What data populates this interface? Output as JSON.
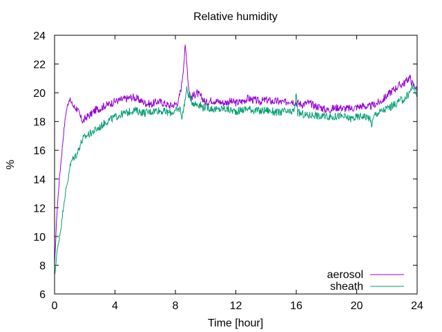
{
  "chart_data": {
    "type": "line",
    "title": "Relative humidity",
    "xlabel": "Time [hour]",
    "ylabel": "%",
    "xlim": [
      0,
      24
    ],
    "ylim": [
      6,
      24
    ],
    "xticks": [
      0,
      4,
      8,
      12,
      16,
      20,
      24
    ],
    "yticks": [
      6,
      8,
      10,
      12,
      14,
      16,
      18,
      20,
      22,
      24
    ],
    "grid": false,
    "legend_position": "bottom-right",
    "series": [
      {
        "name": "aerosol",
        "color": "#9400d3",
        "x": [
          0,
          0.15,
          0.3,
          0.45,
          0.6,
          0.75,
          0.9,
          1.0,
          1.1,
          1.3,
          1.5,
          1.7,
          1.9,
          2.1,
          2.4,
          2.7,
          3.0,
          3.3,
          3.6,
          4.0,
          4.4,
          4.8,
          5.2,
          5.6,
          6.0,
          6.4,
          6.8,
          7.2,
          7.6,
          8.0,
          8.2,
          8.4,
          8.55,
          8.65,
          8.75,
          8.85,
          9.0,
          9.2,
          9.4,
          9.6,
          9.8,
          10.0,
          10.4,
          10.8,
          11.2,
          11.6,
          12.0,
          12.4,
          12.8,
          13.2,
          13.6,
          14.0,
          14.4,
          14.8,
          15.2,
          15.6,
          16.0,
          16.4,
          16.8,
          17.2,
          17.6,
          18.0,
          18.4,
          18.8,
          19.2,
          19.6,
          20.0,
          20.4,
          20.8,
          21.2,
          21.6,
          22.0,
          22.4,
          22.8,
          23.2,
          23.5,
          23.7,
          23.9,
          24.0
        ],
        "y": [
          8.0,
          11.5,
          13.8,
          15.5,
          17.2,
          18.6,
          19.3,
          19.6,
          19.3,
          19.0,
          18.9,
          18.3,
          18.0,
          18.3,
          18.5,
          18.8,
          18.9,
          19.1,
          19.2,
          19.4,
          19.5,
          19.6,
          19.7,
          19.5,
          19.3,
          19.2,
          19.4,
          19.3,
          19.1,
          19.2,
          19.4,
          20.5,
          22.0,
          23.2,
          22.3,
          20.6,
          19.7,
          19.8,
          20.0,
          19.8,
          19.6,
          19.3,
          19.5,
          19.4,
          19.3,
          19.4,
          19.3,
          19.4,
          19.6,
          19.5,
          19.4,
          19.5,
          19.4,
          19.4,
          19.3,
          19.5,
          19.3,
          19.2,
          19.3,
          19.1,
          19.0,
          18.8,
          18.9,
          19.0,
          18.9,
          18.9,
          19.0,
          19.1,
          19.0,
          19.2,
          19.4,
          19.8,
          20.2,
          20.5,
          20.7,
          21.1,
          20.6,
          20.4,
          20.0
        ]
      },
      {
        "name": "sheath",
        "color": "#009e73",
        "x": [
          0,
          0.15,
          0.3,
          0.45,
          0.6,
          0.75,
          0.9,
          1.0,
          1.15,
          1.3,
          1.5,
          1.7,
          1.9,
          2.1,
          2.4,
          2.7,
          3.0,
          3.3,
          3.6,
          4.0,
          4.4,
          4.8,
          5.2,
          5.6,
          6.0,
          6.4,
          6.8,
          7.2,
          7.6,
          8.0,
          8.3,
          8.45,
          8.6,
          8.75,
          8.9,
          9.0,
          9.2,
          9.4,
          9.6,
          9.8,
          10.0,
          10.4,
          10.8,
          11.2,
          11.6,
          12.0,
          12.4,
          12.8,
          13.2,
          13.6,
          14.0,
          14.4,
          14.8,
          15.2,
          15.6,
          15.9,
          16.0,
          16.1,
          16.4,
          16.8,
          17.2,
          17.6,
          18.0,
          18.4,
          18.8,
          19.2,
          19.6,
          20.0,
          20.4,
          20.8,
          21.0,
          21.2,
          21.6,
          22.0,
          22.4,
          22.8,
          23.2,
          23.5,
          23.7,
          23.9,
          24.0
        ],
        "y": [
          7.2,
          8.8,
          9.8,
          10.8,
          12.2,
          13.2,
          14.0,
          14.8,
          15.3,
          15.5,
          15.8,
          16.4,
          16.8,
          17.0,
          17.2,
          17.4,
          17.6,
          17.9,
          18.1,
          18.3,
          18.5,
          18.6,
          18.8,
          18.7,
          18.6,
          18.7,
          18.8,
          18.7,
          18.6,
          18.7,
          18.9,
          18.3,
          19.3,
          20.2,
          19.8,
          19.5,
          19.3,
          19.2,
          19.2,
          19.0,
          19.0,
          18.9,
          18.8,
          18.9,
          18.8,
          18.7,
          18.8,
          18.9,
          18.8,
          18.7,
          18.8,
          18.7,
          18.6,
          18.7,
          18.6,
          18.8,
          20.1,
          18.6,
          18.5,
          18.4,
          18.5,
          18.3,
          18.4,
          18.3,
          18.4,
          18.3,
          18.2,
          18.3,
          18.4,
          18.3,
          17.8,
          18.5,
          18.7,
          18.9,
          19.1,
          19.4,
          19.6,
          20.0,
          20.5,
          20.0,
          19.8
        ]
      }
    ]
  }
}
